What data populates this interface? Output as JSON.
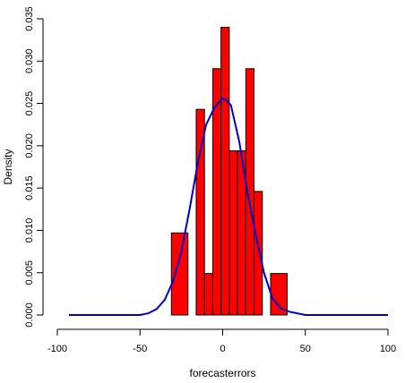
{
  "chart_data": {
    "type": "bar",
    "title": "",
    "xlabel": "forecasterrors",
    "ylabel": "Density",
    "xlim": [
      -100,
      100
    ],
    "ylim": [
      0,
      0.035
    ],
    "x_ticks": [
      -100,
      -50,
      0,
      50,
      100
    ],
    "y_ticks": [
      0.0,
      0.005,
      0.01,
      0.015,
      0.02,
      0.025,
      0.03,
      0.035
    ],
    "x_tick_labels": [
      "-100",
      "-50",
      "0",
      "50",
      "100"
    ],
    "y_tick_labels": [
      "0.000",
      "0.005",
      "0.010",
      "0.015",
      "0.020",
      "0.025",
      "0.030",
      "0.035"
    ],
    "grid": false,
    "series": [
      {
        "type": "histogram",
        "color": "#ff0000",
        "border_color": "#000000",
        "bins": [
          {
            "x0": -31,
            "x1": -21,
            "density": 0.0097
          },
          {
            "x0": -21,
            "x1": -16,
            "density": 0.0
          },
          {
            "x0": -16,
            "x1": -11,
            "density": 0.0243
          },
          {
            "x0": -11,
            "x1": -6,
            "density": 0.0049
          },
          {
            "x0": -6,
            "x1": -1,
            "density": 0.0291
          },
          {
            "x0": -1,
            "x1": 4,
            "density": 0.034
          },
          {
            "x0": 4,
            "x1": 9,
            "density": 0.0194
          },
          {
            "x0": 9,
            "x1": 14,
            "density": 0.0194
          },
          {
            "x0": 14,
            "x1": 19,
            "density": 0.0291
          },
          {
            "x0": 19,
            "x1": 24,
            "density": 0.0146
          },
          {
            "x0": 24,
            "x1": 29,
            "density": 0.0
          },
          {
            "x0": 29,
            "x1": 39,
            "density": 0.0049
          }
        ]
      },
      {
        "type": "line",
        "color": "#0000cc",
        "x": [
          -93,
          -50,
          -45,
          -40,
          -35,
          -30,
          -25,
          -20,
          -15,
          -10,
          -5,
          -2,
          0,
          2,
          5,
          10,
          15,
          20,
          25,
          30,
          35,
          40,
          45,
          50,
          55,
          100
        ],
        "y": [
          0.0,
          0.0,
          0.0002,
          0.0007,
          0.0018,
          0.004,
          0.0075,
          0.0125,
          0.018,
          0.0225,
          0.0245,
          0.0252,
          0.0256,
          0.0254,
          0.0248,
          0.0205,
          0.0145,
          0.0095,
          0.005,
          0.002,
          0.0008,
          0.0004,
          0.0002,
          0.0,
          0.0,
          0.0
        ]
      }
    ]
  }
}
